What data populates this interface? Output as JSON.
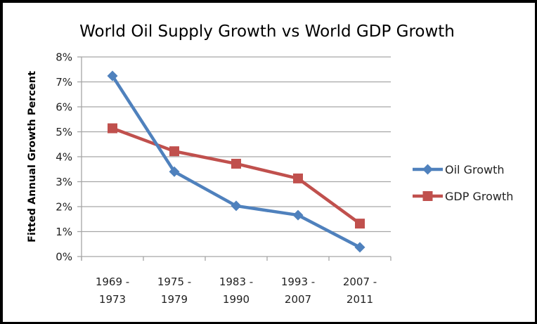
{
  "chart_data": {
    "type": "line",
    "title": "World Oil Supply Growth vs World GDP Growth",
    "xlabel": "",
    "ylabel": "Fitted Annual Growth Percent",
    "categories": [
      [
        "1969 -",
        "1973"
      ],
      [
        "1975 -",
        "1979"
      ],
      [
        "1983 -",
        "1990"
      ],
      [
        "1993 -",
        "2007"
      ],
      [
        "2007 -",
        "2011"
      ]
    ],
    "category_labels": [
      "1969 - 1973",
      "1975 - 1979",
      "1983 - 1990",
      "1993 - 2007",
      "2007 - 2011"
    ],
    "ylim": [
      0,
      8
    ],
    "yticks": [
      0,
      1,
      2,
      3,
      4,
      5,
      6,
      7,
      8
    ],
    "ytick_labels": [
      "0%",
      "1%",
      "2%",
      "3%",
      "4%",
      "5%",
      "6%",
      "7%",
      "8%"
    ],
    "grid": true,
    "legend_position": "right",
    "series": [
      {
        "name": "Oil Growth",
        "color": "#4F81BD",
        "marker": "diamond",
        "values": [
          7.24,
          3.4,
          2.03,
          1.66,
          0.37
        ]
      },
      {
        "name": "GDP Growth",
        "color": "#C0504D",
        "marker": "square",
        "values": [
          5.14,
          4.22,
          3.72,
          3.13,
          1.32
        ]
      }
    ]
  }
}
